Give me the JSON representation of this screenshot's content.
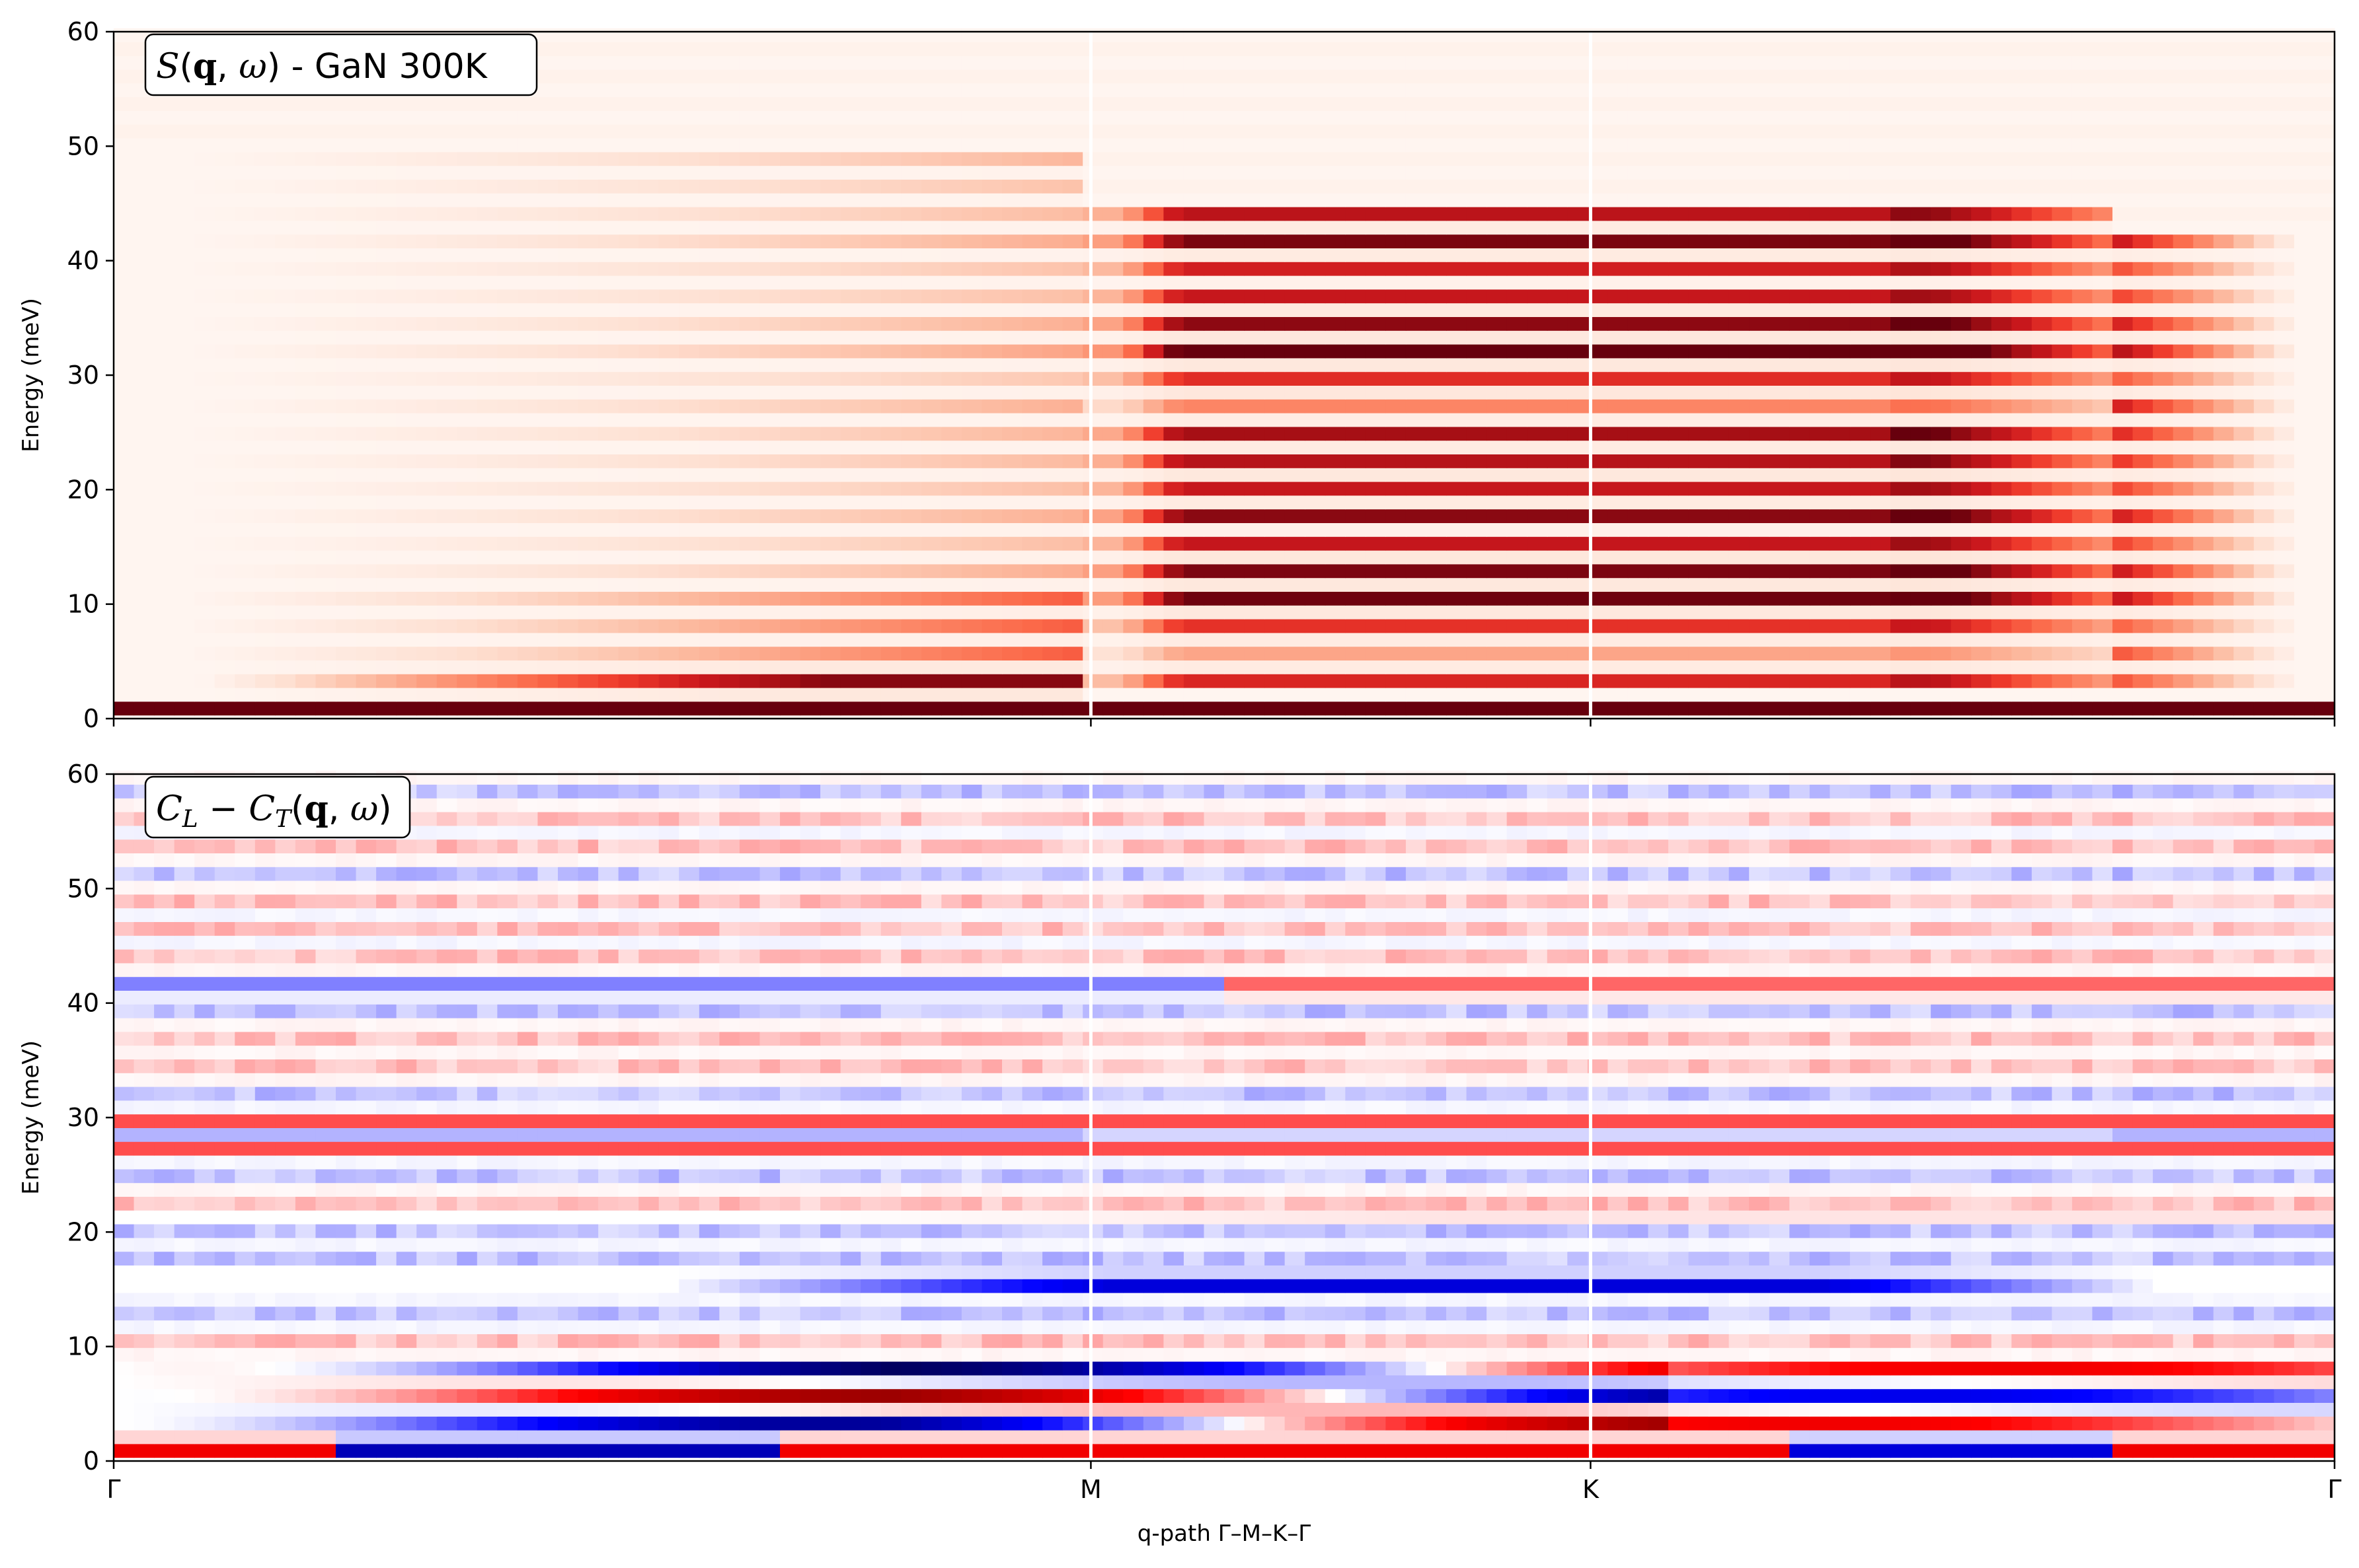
{
  "chart_data": [
    {
      "type": "heatmap",
      "panel": "top",
      "title_parts": {
        "S": "S",
        "q": "q",
        "omega": "ω",
        "suffix": " - GaN 300K"
      },
      "ylabel": "Energy (meV)",
      "ylim": [
        0,
        60
      ],
      "yticks": [
        "0",
        "10",
        "20",
        "30",
        "40",
        "50",
        "60"
      ],
      "colormap": "Reds",
      "q_segments": [
        {
          "label": "Γ",
          "pos": 0.0
        },
        {
          "label": "M",
          "pos": 0.44
        },
        {
          "label": "K",
          "pos": 0.665
        },
        {
          "label": "Γ",
          "pos": 1.0
        }
      ],
      "features": [
        {
          "name": "acoustic-low",
          "energy_range": [
            0,
            4.5
          ],
          "q_range": [
            0.03,
            0.44
          ],
          "peak_intensity": 1.0
        },
        {
          "name": "gamma-m-bands",
          "energy_range": [
            6,
            48
          ],
          "q_range": [
            0.05,
            0.44
          ],
          "peak_intensity": 0.5
        },
        {
          "name": "m-k-saturated",
          "energy_range": [
            2,
            44
          ],
          "q_range": [
            0.44,
            0.89
          ],
          "peak_intensity": 1.0
        },
        {
          "name": "k-gamma-decay",
          "energy_range": [
            2,
            42
          ],
          "q_range": [
            0.85,
            1.0
          ],
          "peak_intensity": 0.6
        }
      ]
    },
    {
      "type": "heatmap",
      "panel": "bottom",
      "title_parts": {
        "C": "C",
        "L": "L",
        "minus": " − ",
        "T": "T",
        "q": "q",
        "omega": "ω"
      },
      "ylabel": "Energy (meV)",
      "xlabel": "q-path Γ–M–K–Γ",
      "ylim": [
        0,
        60
      ],
      "yticks": [
        "0",
        "10",
        "20",
        "30",
        "40",
        "50",
        "60"
      ],
      "colormap": "seismic",
      "xtick_labels": [
        "Γ",
        "M",
        "K",
        "Γ"
      ],
      "features": [
        {
          "name": "flat-mode-27meV",
          "energy": 27.5,
          "sign": "negative",
          "magnitude": 1.0
        },
        {
          "name": "low-energy-branch",
          "energy_range": [
            0,
            8
          ],
          "sign": "mixed",
          "magnitude": 0.9
        },
        {
          "name": "blue-band-15meV",
          "energy": 15.5,
          "q_range": [
            0.3,
            0.9
          ],
          "sign": "negative",
          "magnitude": 0.6
        }
      ]
    }
  ]
}
